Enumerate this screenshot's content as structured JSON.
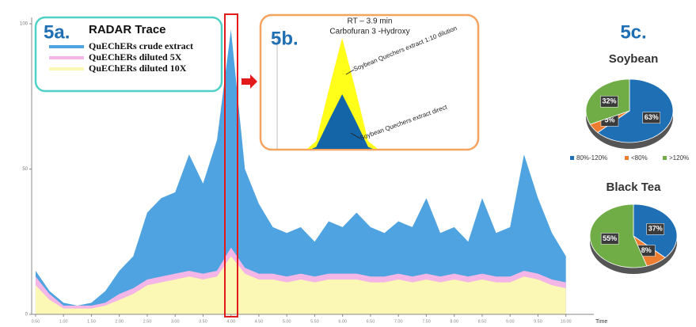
{
  "chart_data": [
    {
      "type": "area",
      "label": "5a.",
      "title": "RADAR Trace",
      "xlabel": "Time",
      "x": [
        0.5,
        0.75,
        1,
        1.25,
        1.5,
        1.75,
        2,
        2.25,
        2.5,
        2.75,
        3,
        3.25,
        3.5,
        3.75,
        4,
        4.25,
        4.5,
        4.75,
        5,
        5.25,
        5.5,
        5.75,
        6,
        6.25,
        6.5,
        6.75,
        7,
        7.25,
        7.5,
        7.75,
        8,
        8.25,
        8.5,
        8.75,
        9,
        9.25,
        9.5,
        9.75,
        10
      ],
      "series": [
        {
          "name": "QuEChERs crude extract",
          "color": "#4ea3e0",
          "values": [
            15,
            8,
            4,
            3,
            4,
            8,
            15,
            20,
            35,
            40,
            42,
            55,
            45,
            60,
            98,
            50,
            38,
            30,
            28,
            30,
            25,
            32,
            30,
            35,
            30,
            28,
            32,
            30,
            40,
            28,
            30,
            25,
            40,
            28,
            30,
            55,
            40,
            28,
            20
          ]
        },
        {
          "name": "QuEChERs diluted  5X",
          "color": "#f4b6e6",
          "values": [
            13,
            7,
            3,
            3,
            3,
            4,
            7,
            9,
            12,
            13,
            14,
            15,
            14,
            15,
            23,
            16,
            14,
            14,
            13,
            14,
            13,
            14,
            14,
            14,
            13,
            13,
            14,
            13,
            14,
            13,
            14,
            13,
            14,
            13,
            13,
            15,
            14,
            12,
            11
          ]
        },
        {
          "name": "QuEChERs diluted  10X",
          "color": "#fbf7b5",
          "values": [
            10,
            5,
            2,
            2,
            2,
            3,
            5,
            7,
            10,
            11,
            12,
            13,
            12,
            13,
            20,
            14,
            12,
            12,
            11,
            12,
            11,
            12,
            12,
            12,
            11,
            11,
            12,
            11,
            12,
            11,
            12,
            11,
            12,
            11,
            11,
            13,
            12,
            10,
            9
          ]
        }
      ],
      "xlim": [
        0.43,
        10.43
      ],
      "ylim": [
        0,
        100
      ],
      "yticks": [
        0,
        50,
        100
      ],
      "xticks": [
        {
          "value": 0.5,
          "label": "0.50"
        },
        {
          "value": 1,
          "label": "1.00"
        },
        {
          "value": 1.5,
          "label": "1.50"
        },
        {
          "value": 2,
          "label": "2.00"
        },
        {
          "value": 2.5,
          "label": "2.50"
        },
        {
          "value": 3,
          "label": "3.00"
        },
        {
          "value": 3.5,
          "label": "3.50"
        },
        {
          "value": 4,
          "label": "4.00"
        },
        {
          "value": 4.5,
          "label": "4.50"
        },
        {
          "value": 5,
          "label": "5.00"
        },
        {
          "value": 5.5,
          "label": "5.50"
        },
        {
          "value": 6,
          "label": "6.00"
        },
        {
          "value": 6.5,
          "label": "6.50"
        },
        {
          "value": 7,
          "label": "7.00"
        },
        {
          "value": 7.5,
          "label": "7.50"
        },
        {
          "value": 8,
          "label": "8.00"
        },
        {
          "value": 8.5,
          "label": "8.50"
        },
        {
          "value": 9,
          "label": "9.00"
        },
        {
          "value": 9.5,
          "label": "9.50"
        },
        {
          "value": 10,
          "label": "10.00"
        }
      ]
    },
    {
      "type": "area",
      "label": "5b.",
      "title": "RT – 3.9 min",
      "subtitle": "Carbofuran 3 -Hydroxy",
      "x": [
        3.6,
        3.65,
        3.7,
        3.75,
        3.8,
        3.85,
        3.9,
        3.95,
        4,
        4.05,
        4.1,
        4.15,
        4.2,
        4.25,
        4.3
      ],
      "series": [
        {
          "name": "Soybean Quechers extract 1:10 dilution",
          "color": "#ffff1a",
          "values": [
            0,
            0,
            0.5,
            10,
            55,
            98,
            55,
            10,
            1,
            0,
            0,
            0,
            0,
            0,
            0
          ]
        },
        {
          "name": "Soybean Quechers extract direct",
          "color": "#1465a8",
          "values": [
            0,
            0,
            0.3,
            5,
            28,
            50,
            28,
            5,
            0.5,
            0,
            0,
            0,
            0,
            0,
            0
          ]
        }
      ],
      "xlim": [
        3.6,
        4.3
      ],
      "ylim": [
        0,
        100
      ]
    },
    {
      "type": "pie",
      "label": "5c.",
      "categories": [
        "80%-120%",
        "<80%",
        ">120%"
      ],
      "colors": [
        "#1f6fb4",
        "#ed7d31",
        "#70ad47"
      ],
      "pies": [
        {
          "title": "Soybean",
          "values": [
            63,
            5,
            32
          ],
          "value_labels": [
            "63%",
            "5%",
            "32%"
          ]
        },
        {
          "title": "Black Tea",
          "values": [
            37,
            8,
            55
          ],
          "value_labels": [
            "37%",
            "8%",
            "55%"
          ]
        }
      ]
    }
  ]
}
